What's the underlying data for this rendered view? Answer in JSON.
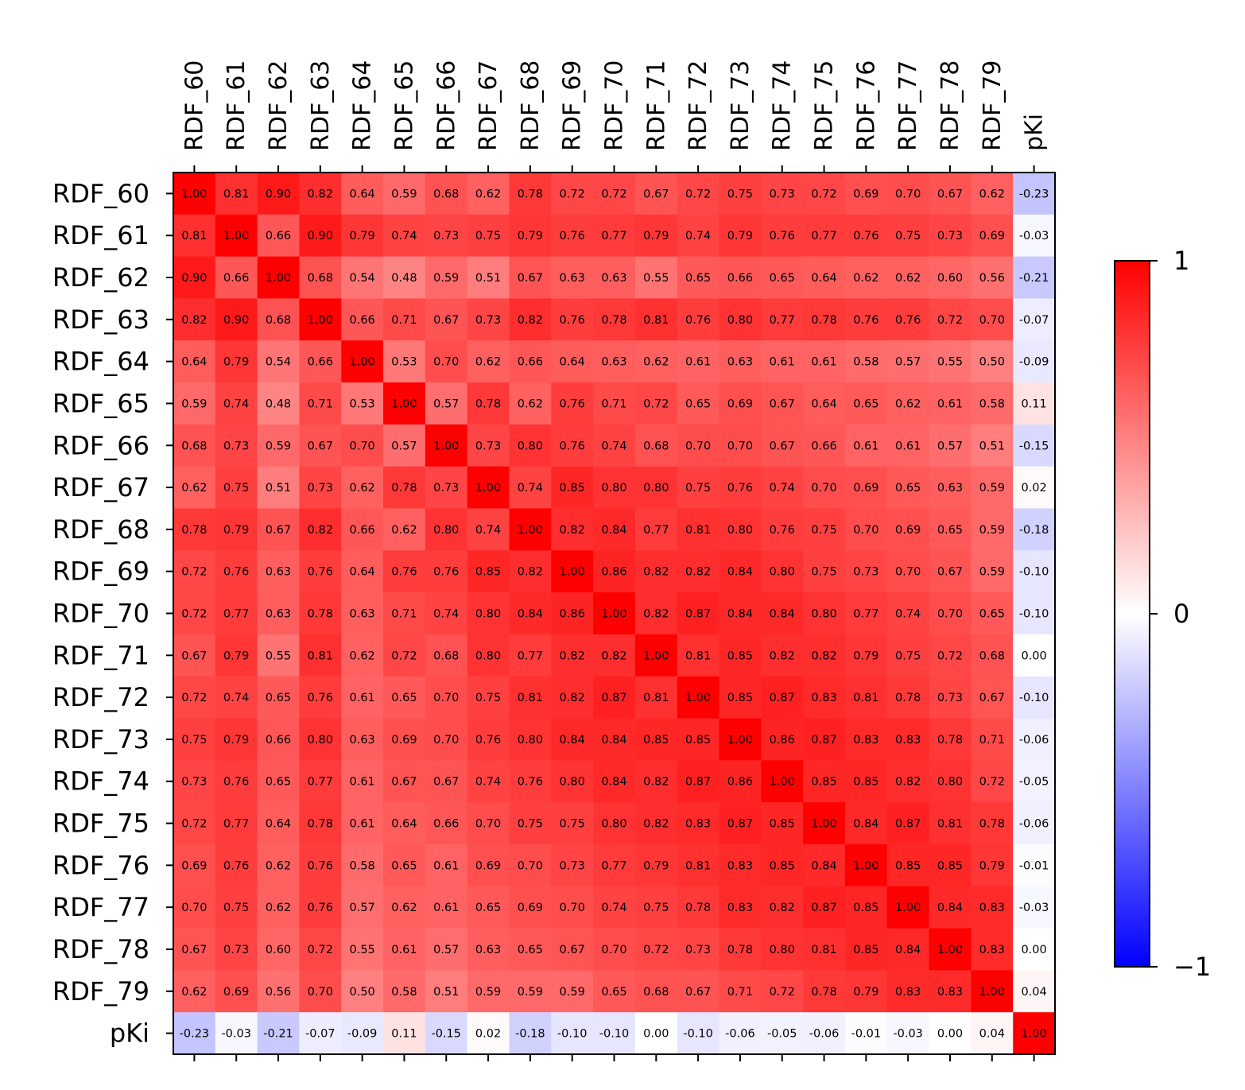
{
  "chart_data": {
    "type": "heatmap",
    "title": "",
    "labels": [
      "RDF_60",
      "RDF_61",
      "RDF_62",
      "RDF_63",
      "RDF_64",
      "RDF_65",
      "RDF_66",
      "RDF_67",
      "RDF_68",
      "RDF_69",
      "RDF_70",
      "RDF_71",
      "RDF_72",
      "RDF_73",
      "RDF_74",
      "RDF_75",
      "RDF_76",
      "RDF_77",
      "RDF_78",
      "RDF_79",
      "pKi"
    ],
    "matrix": [
      [
        1.0,
        0.81,
        0.9,
        0.82,
        0.64,
        0.59,
        0.68,
        0.62,
        0.78,
        0.72,
        0.72,
        0.67,
        0.72,
        0.75,
        0.73,
        0.72,
        0.69,
        0.7,
        0.67,
        0.62,
        -0.23
      ],
      [
        0.81,
        1.0,
        0.66,
        0.9,
        0.79,
        0.74,
        0.73,
        0.75,
        0.79,
        0.76,
        0.77,
        0.79,
        0.74,
        0.79,
        0.76,
        0.77,
        0.76,
        0.75,
        0.73,
        0.69,
        -0.03
      ],
      [
        0.9,
        0.66,
        1.0,
        0.68,
        0.54,
        0.48,
        0.59,
        0.51,
        0.67,
        0.63,
        0.63,
        0.55,
        0.65,
        0.66,
        0.65,
        0.64,
        0.62,
        0.62,
        0.6,
        0.56,
        -0.21
      ],
      [
        0.82,
        0.9,
        0.68,
        1.0,
        0.66,
        0.71,
        0.67,
        0.73,
        0.82,
        0.76,
        0.78,
        0.81,
        0.76,
        0.8,
        0.77,
        0.78,
        0.76,
        0.76,
        0.72,
        0.7,
        -0.07
      ],
      [
        0.64,
        0.79,
        0.54,
        0.66,
        1.0,
        0.53,
        0.7,
        0.62,
        0.66,
        0.64,
        0.63,
        0.62,
        0.61,
        0.63,
        0.61,
        0.61,
        0.58,
        0.57,
        0.55,
        0.5,
        -0.09
      ],
      [
        0.59,
        0.74,
        0.48,
        0.71,
        0.53,
        1.0,
        0.57,
        0.78,
        0.62,
        0.76,
        0.71,
        0.72,
        0.65,
        0.69,
        0.67,
        0.64,
        0.65,
        0.62,
        0.61,
        0.58,
        0.11
      ],
      [
        0.68,
        0.73,
        0.59,
        0.67,
        0.7,
        0.57,
        1.0,
        0.73,
        0.8,
        0.76,
        0.74,
        0.68,
        0.7,
        0.7,
        0.67,
        0.66,
        0.61,
        0.61,
        0.57,
        0.51,
        -0.15
      ],
      [
        0.62,
        0.75,
        0.51,
        0.73,
        0.62,
        0.78,
        0.73,
        1.0,
        0.74,
        0.85,
        0.8,
        0.8,
        0.75,
        0.76,
        0.74,
        0.7,
        0.69,
        0.65,
        0.63,
        0.59,
        0.02
      ],
      [
        0.78,
        0.79,
        0.67,
        0.82,
        0.66,
        0.62,
        0.8,
        0.74,
        1.0,
        0.82,
        0.84,
        0.77,
        0.81,
        0.8,
        0.76,
        0.75,
        0.7,
        0.69,
        0.65,
        0.59,
        -0.18
      ],
      [
        0.72,
        0.76,
        0.63,
        0.76,
        0.64,
        0.76,
        0.76,
        0.85,
        0.82,
        1.0,
        0.86,
        0.82,
        0.82,
        0.84,
        0.8,
        0.75,
        0.73,
        0.7,
        0.67,
        0.59,
        -0.1
      ],
      [
        0.72,
        0.77,
        0.63,
        0.78,
        0.63,
        0.71,
        0.74,
        0.8,
        0.84,
        0.86,
        1.0,
        0.82,
        0.87,
        0.84,
        0.84,
        0.8,
        0.77,
        0.74,
        0.7,
        0.65,
        -0.1
      ],
      [
        0.67,
        0.79,
        0.55,
        0.81,
        0.62,
        0.72,
        0.68,
        0.8,
        0.77,
        0.82,
        0.82,
        1.0,
        0.81,
        0.85,
        0.82,
        0.82,
        0.79,
        0.75,
        0.72,
        0.68,
        0.0
      ],
      [
        0.72,
        0.74,
        0.65,
        0.76,
        0.61,
        0.65,
        0.7,
        0.75,
        0.81,
        0.82,
        0.87,
        0.81,
        1.0,
        0.85,
        0.87,
        0.83,
        0.81,
        0.78,
        0.73,
        0.67,
        -0.1
      ],
      [
        0.75,
        0.79,
        0.66,
        0.8,
        0.63,
        0.69,
        0.7,
        0.76,
        0.8,
        0.84,
        0.84,
        0.85,
        0.85,
        1.0,
        0.86,
        0.87,
        0.83,
        0.83,
        0.78,
        0.71,
        -0.06
      ],
      [
        0.73,
        0.76,
        0.65,
        0.77,
        0.61,
        0.67,
        0.67,
        0.74,
        0.76,
        0.8,
        0.84,
        0.82,
        0.87,
        0.86,
        1.0,
        0.85,
        0.85,
        0.82,
        0.8,
        0.72,
        -0.05
      ],
      [
        0.72,
        0.77,
        0.64,
        0.78,
        0.61,
        0.64,
        0.66,
        0.7,
        0.75,
        0.75,
        0.8,
        0.82,
        0.83,
        0.87,
        0.85,
        1.0,
        0.84,
        0.87,
        0.81,
        0.78,
        -0.06
      ],
      [
        0.69,
        0.76,
        0.62,
        0.76,
        0.58,
        0.65,
        0.61,
        0.69,
        0.7,
        0.73,
        0.77,
        0.79,
        0.81,
        0.83,
        0.85,
        0.84,
        1.0,
        0.85,
        0.85,
        0.79,
        -0.01
      ],
      [
        0.7,
        0.75,
        0.62,
        0.76,
        0.57,
        0.62,
        0.61,
        0.65,
        0.69,
        0.7,
        0.74,
        0.75,
        0.78,
        0.83,
        0.82,
        0.87,
        0.85,
        1.0,
        0.84,
        0.83,
        -0.03
      ],
      [
        0.67,
        0.73,
        0.6,
        0.72,
        0.55,
        0.61,
        0.57,
        0.63,
        0.65,
        0.67,
        0.7,
        0.72,
        0.73,
        0.78,
        0.8,
        0.81,
        0.85,
        0.84,
        1.0,
        0.83,
        0.0
      ],
      [
        0.62,
        0.69,
        0.56,
        0.7,
        0.5,
        0.58,
        0.51,
        0.59,
        0.59,
        0.59,
        0.65,
        0.68,
        0.67,
        0.71,
        0.72,
        0.78,
        0.79,
        0.83,
        0.83,
        1.0,
        0.04
      ],
      [
        -0.23,
        -0.03,
        -0.21,
        -0.07,
        -0.09,
        0.11,
        -0.15,
        0.02,
        -0.18,
        -0.1,
        -0.1,
        0.0,
        -0.1,
        -0.06,
        -0.05,
        -0.06,
        -0.01,
        -0.03,
        0.0,
        0.04,
        1.0
      ]
    ],
    "value_format": "2 decimals",
    "colormap": "bwr",
    "colors": {
      "low": "#0000ff",
      "mid": "#ffffff",
      "high": "#ff0000"
    },
    "vmin": -1,
    "vmax": 1,
    "colorbar": {
      "ticks": [
        1,
        0,
        -1
      ],
      "tick_labels": [
        "1",
        "0",
        "−1"
      ],
      "placement": "right"
    },
    "x_tick_position": "top",
    "grid": false
  }
}
